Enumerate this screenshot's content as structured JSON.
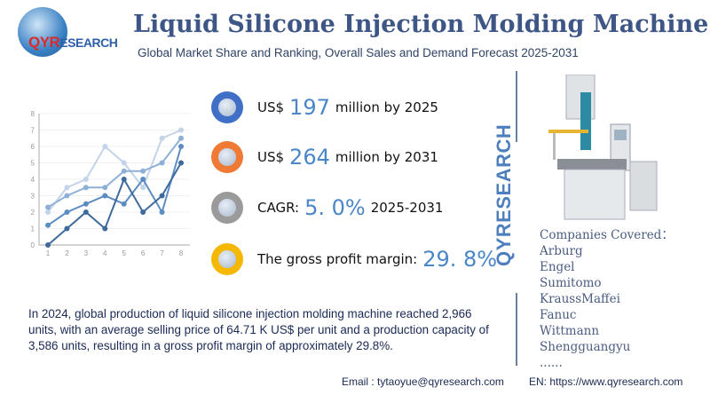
{
  "logo": {
    "brand": "QYRESEARCH",
    "brand_q": "QYR",
    "brand_rest": "ESEARCH"
  },
  "header": {
    "title": "Liquid Silicone Injection Molding Machine",
    "subtitle": "Global Market Share and Ranking, Overall Sales and Demand Forecast 2025-2031"
  },
  "stats": [
    {
      "prefix": "US$",
      "value": "197",
      "suffix": "million by 2025",
      "icon_color": "#3f6fc6",
      "icon": "qyr-globe-icon"
    },
    {
      "prefix": "US$",
      "value": "264",
      "suffix": "million by 2031",
      "icon_color": "#ee7a35",
      "icon": "qyr-globe-icon"
    },
    {
      "prefix": "CAGR:",
      "value": "5. 0%",
      "suffix": "2025-2031",
      "icon_color": "#9a9a9a",
      "icon": "qyr-globe-icon"
    },
    {
      "prefix": "The gross profit margin:",
      "value": "29. 8%",
      "suffix": "",
      "icon_color": "#f5b800",
      "icon": "qyr-globe-icon"
    }
  ],
  "vertical_logo": "QYRESEARCH",
  "companies": {
    "label": "Companies Covered：",
    "items": [
      "Arburg",
      "Engel",
      "Sumitomo",
      "KraussMaffei",
      "Fanuc",
      "Wittmann",
      "Shengguangyu",
      "......"
    ]
  },
  "description": "In 2024, global production of liquid silicone injection molding machine reached 2,966 units, with an average selling price of 64.71 K US$ per unit and a production capacity of 3,586 units, resulting in a gross profit margin of approximately 29.8%.",
  "footer": {
    "email": "Email :  tytaoyue@qyresearch.com",
    "website": "EN: https://www.qyresearch.com"
  },
  "chart_data": {
    "type": "line",
    "x": [
      1,
      2,
      3,
      4,
      5,
      6,
      7,
      8
    ],
    "ylim": [
      0,
      8
    ],
    "yticks": [
      0,
      1,
      2,
      3,
      4,
      5,
      6,
      7,
      8
    ],
    "grid": true,
    "series": [
      {
        "values": [
          2,
          3.5,
          4,
          6,
          5,
          3.5,
          6.5,
          7
        ],
        "color": "#c3d3e8"
      },
      {
        "values": [
          2.3,
          3,
          3.5,
          3.5,
          4.5,
          4.5,
          5,
          6.5
        ],
        "color": "#8fb0d6"
      },
      {
        "values": [
          1.2,
          2,
          2.5,
          3,
          2.5,
          4,
          2,
          6
        ],
        "color": "#5b8cc2"
      },
      {
        "values": [
          0,
          1,
          2,
          1,
          4,
          2,
          3,
          5
        ],
        "color": "#3e6a9c"
      }
    ]
  }
}
